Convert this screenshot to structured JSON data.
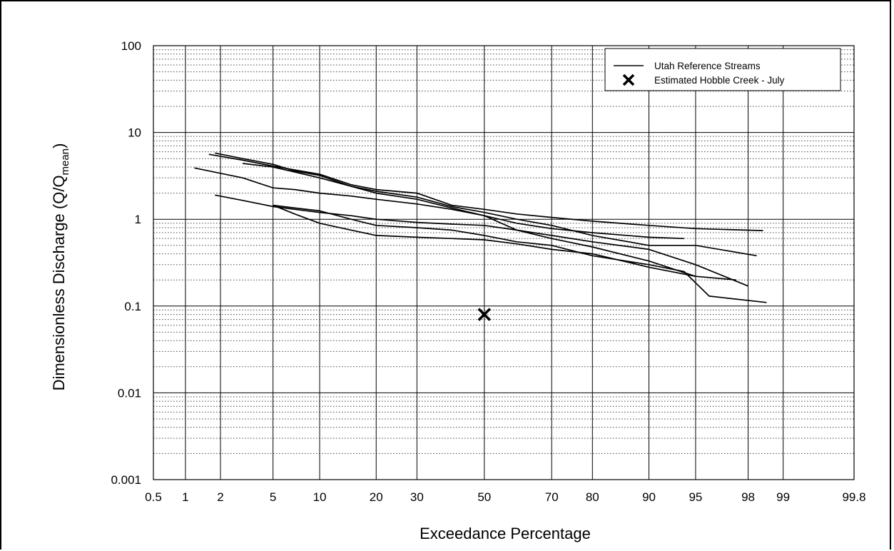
{
  "chart_data": {
    "type": "line",
    "title": "",
    "xlabel": "Exceedance Percentage",
    "ylabel_main": "Dimensionless Discharge (Q/Q",
    "ylabel_sub": "mean",
    "ylabel_close": ")",
    "x_scale": "normal-probability",
    "y_scale": "log",
    "xlim": [
      0.5,
      99.8
    ],
    "ylim": [
      0.001,
      100
    ],
    "x_ticks": [
      0.5,
      1,
      2,
      5,
      10,
      20,
      30,
      50,
      70,
      80,
      90,
      95,
      98,
      99,
      99.8
    ],
    "x_tick_labels": [
      "0.5",
      "1",
      "2",
      "5",
      "10",
      "20",
      "30",
      "50",
      "70",
      "80",
      "90",
      "95",
      "98",
      "99",
      "99.8"
    ],
    "y_ticks": [
      0.001,
      0.01,
      0.1,
      1,
      10,
      100
    ],
    "y_tick_labels": [
      "0.001",
      "0.01",
      "0.1",
      "1",
      "10",
      "100"
    ],
    "grid": true,
    "legend_position": "top-right",
    "legend": {
      "lines_label": "Utah Reference Streams",
      "marker_label": "Estimated Hobble Creek - July"
    },
    "series": [
      {
        "x": [
          1.8,
          3,
          5,
          7,
          10,
          15,
          20,
          30,
          40,
          50,
          60,
          70,
          80,
          90,
          94
        ],
        "y": [
          5.8,
          5.0,
          4.3,
          3.6,
          3.2,
          2.4,
          2.0,
          1.7,
          1.35,
          1.1,
          0.9,
          0.78,
          0.7,
          0.62,
          0.6
        ],
        "line_color": "#000000"
      },
      {
        "x": [
          1.6,
          3,
          5,
          7,
          10,
          15,
          20,
          30,
          40,
          50,
          60,
          70,
          80,
          90,
          95,
          98.5
        ],
        "y": [
          5.6,
          4.8,
          4.1,
          3.7,
          3.3,
          2.5,
          2.2,
          2.0,
          1.45,
          1.3,
          1.15,
          1.05,
          0.95,
          0.85,
          0.78,
          0.74
        ],
        "line_color": "#000000"
      },
      {
        "x": [
          3,
          5,
          7,
          10,
          15,
          20,
          30,
          40,
          50,
          60,
          70,
          80,
          90,
          95,
          98.3
        ],
        "y": [
          4.4,
          4.0,
          3.5,
          3.0,
          2.4,
          2.1,
          1.8,
          1.4,
          1.2,
          1.0,
          0.85,
          0.65,
          0.5,
          0.5,
          0.38
        ],
        "line_color": "#000000"
      },
      {
        "x": [
          1.2,
          3,
          5,
          7,
          10,
          15,
          20,
          30,
          40,
          50,
          60,
          70,
          80,
          90,
          95,
          98
        ],
        "y": [
          3.9,
          3.0,
          2.3,
          2.2,
          2.0,
          1.85,
          1.7,
          1.5,
          1.3,
          1.1,
          0.75,
          0.65,
          0.55,
          0.45,
          0.3,
          0.17
        ],
        "line_color": "#000000"
      },
      {
        "x": [
          1.8,
          3,
          5,
          7,
          10,
          15,
          20,
          30,
          40,
          50,
          60,
          70,
          80,
          90,
          95,
          97.5
        ],
        "y": [
          1.9,
          1.65,
          1.4,
          1.3,
          1.2,
          1.1,
          1.0,
          0.92,
          0.88,
          0.85,
          0.75,
          0.6,
          0.48,
          0.33,
          0.22,
          0.2
        ],
        "line_color": "#000000"
      },
      {
        "x": [
          5,
          7,
          10,
          15,
          20,
          30,
          40,
          50,
          60,
          70,
          80,
          90,
          94,
          96,
          98.6
        ],
        "y": [
          1.45,
          1.35,
          1.25,
          1.0,
          0.85,
          0.8,
          0.75,
          0.65,
          0.55,
          0.5,
          0.38,
          0.3,
          0.25,
          0.13,
          0.11
        ],
        "line_color": "#000000"
      },
      {
        "x": [
          5,
          7,
          10,
          15,
          20,
          30,
          40,
          50,
          60,
          70,
          80,
          90,
          95
        ],
        "y": [
          1.45,
          1.15,
          0.9,
          0.75,
          0.65,
          0.62,
          0.6,
          0.58,
          0.52,
          0.45,
          0.4,
          0.28,
          0.22
        ],
        "line_color": "#000000"
      }
    ],
    "marker_point": {
      "x": 50,
      "y": 0.08
    }
  }
}
